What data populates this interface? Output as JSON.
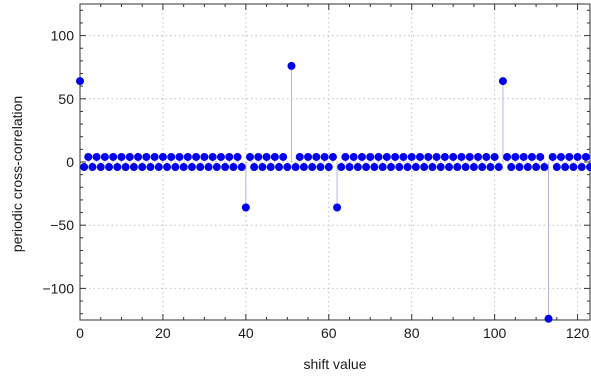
{
  "chart_data": {
    "type": "scatter",
    "style": "stem",
    "title": "",
    "xlabel": "shift value",
    "ylabel": "periodic cross-correlation",
    "xlim": [
      0,
      123
    ],
    "ylim": [
      -125,
      125
    ],
    "x_ticks": [
      0,
      20,
      40,
      60,
      80,
      100,
      120
    ],
    "x_tick_labels": [
      "0",
      "20",
      "40",
      "60",
      "80",
      "100",
      "120"
    ],
    "y_ticks": [
      -100,
      -50,
      0,
      50,
      100
    ],
    "y_tick_labels": [
      "−100",
      "−50",
      "0",
      "50",
      "100"
    ],
    "grid": true,
    "grid_style": "dotted",
    "marker_color": "#0000ee",
    "stem_color": "#b4b4ee",
    "length": 124,
    "special_points": [
      {
        "x": 0,
        "y": 64
      },
      {
        "x": 40,
        "y": -36
      },
      {
        "x": 51,
        "y": 76
      },
      {
        "x": 62,
        "y": -36
      },
      {
        "x": 102,
        "y": 64
      },
      {
        "x": 113,
        "y": -124
      }
    ],
    "pattern_note": "all other points alternate between 4 (odd shifts in low/high ranges) and -4",
    "points": [
      [
        0,
        64
      ],
      [
        1,
        -4
      ],
      [
        2,
        4
      ],
      [
        3,
        -4
      ],
      [
        4,
        4
      ],
      [
        5,
        -4
      ],
      [
        6,
        4
      ],
      [
        7,
        -4
      ],
      [
        8,
        4
      ],
      [
        9,
        -4
      ],
      [
        10,
        4
      ],
      [
        11,
        -4
      ],
      [
        12,
        4
      ],
      [
        13,
        -4
      ],
      [
        14,
        4
      ],
      [
        15,
        -4
      ],
      [
        16,
        4
      ],
      [
        17,
        -4
      ],
      [
        18,
        4
      ],
      [
        19,
        -4
      ],
      [
        20,
        4
      ],
      [
        21,
        -4
      ],
      [
        22,
        4
      ],
      [
        23,
        -4
      ],
      [
        24,
        4
      ],
      [
        25,
        -4
      ],
      [
        26,
        4
      ],
      [
        27,
        -4
      ],
      [
        28,
        4
      ],
      [
        29,
        -4
      ],
      [
        30,
        4
      ],
      [
        31,
        -4
      ],
      [
        32,
        4
      ],
      [
        33,
        -4
      ],
      [
        34,
        4
      ],
      [
        35,
        -4
      ],
      [
        36,
        4
      ],
      [
        37,
        -4
      ],
      [
        38,
        4
      ],
      [
        39,
        -4
      ],
      [
        40,
        -36
      ],
      [
        41,
        4
      ],
      [
        42,
        -4
      ],
      [
        43,
        4
      ],
      [
        44,
        -4
      ],
      [
        45,
        4
      ],
      [
        46,
        -4
      ],
      [
        47,
        4
      ],
      [
        48,
        -4
      ],
      [
        49,
        4
      ],
      [
        50,
        -4
      ],
      [
        51,
        76
      ],
      [
        52,
        -4
      ],
      [
        53,
        4
      ],
      [
        54,
        -4
      ],
      [
        55,
        4
      ],
      [
        56,
        -4
      ],
      [
        57,
        4
      ],
      [
        58,
        -4
      ],
      [
        59,
        4
      ],
      [
        60,
        -4
      ],
      [
        61,
        4
      ],
      [
        62,
        -36
      ],
      [
        63,
        -4
      ],
      [
        64,
        4
      ],
      [
        65,
        -4
      ],
      [
        66,
        4
      ],
      [
        67,
        -4
      ],
      [
        68,
        4
      ],
      [
        69,
        -4
      ],
      [
        70,
        4
      ],
      [
        71,
        -4
      ],
      [
        72,
        4
      ],
      [
        73,
        -4
      ],
      [
        74,
        4
      ],
      [
        75,
        -4
      ],
      [
        76,
        4
      ],
      [
        77,
        -4
      ],
      [
        78,
        4
      ],
      [
        79,
        -4
      ],
      [
        80,
        4
      ],
      [
        81,
        -4
      ],
      [
        82,
        4
      ],
      [
        83,
        -4
      ],
      [
        84,
        4
      ],
      [
        85,
        -4
      ],
      [
        86,
        4
      ],
      [
        87,
        -4
      ],
      [
        88,
        4
      ],
      [
        89,
        -4
      ],
      [
        90,
        4
      ],
      [
        91,
        -4
      ],
      [
        92,
        4
      ],
      [
        93,
        -4
      ],
      [
        94,
        4
      ],
      [
        95,
        -4
      ],
      [
        96,
        4
      ],
      [
        97,
        -4
      ],
      [
        98,
        4
      ],
      [
        99,
        -4
      ],
      [
        100,
        4
      ],
      [
        101,
        -4
      ],
      [
        102,
        64
      ],
      [
        103,
        4
      ],
      [
        104,
        -4
      ],
      [
        105,
        4
      ],
      [
        106,
        -4
      ],
      [
        107,
        4
      ],
      [
        108,
        -4
      ],
      [
        109,
        4
      ],
      [
        110,
        -4
      ],
      [
        111,
        4
      ],
      [
        112,
        -4
      ],
      [
        113,
        -124
      ],
      [
        114,
        4
      ],
      [
        115,
        -4
      ],
      [
        116,
        4
      ],
      [
        117,
        -4
      ],
      [
        118,
        4
      ],
      [
        119,
        -4
      ],
      [
        120,
        4
      ],
      [
        121,
        -4
      ],
      [
        122,
        4
      ],
      [
        123,
        -4
      ]
    ]
  }
}
